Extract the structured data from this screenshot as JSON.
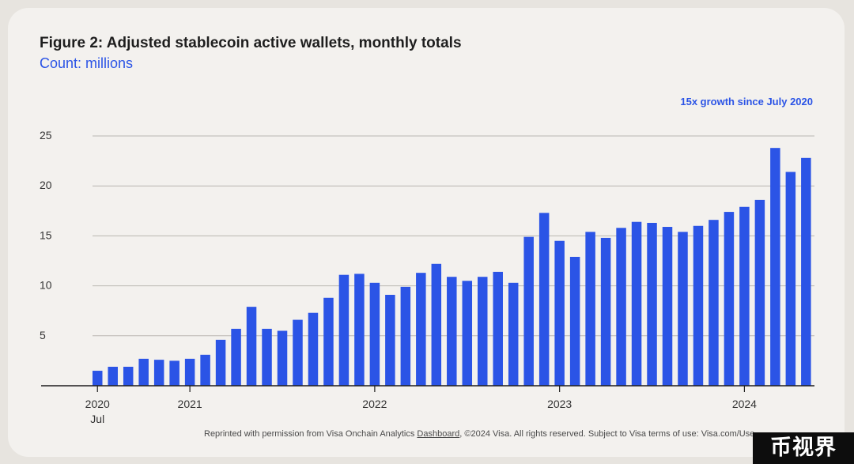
{
  "header": {
    "title": "Figure 2: Adjusted stablecoin active wallets, monthly totals",
    "subtitle": "Count: millions",
    "annotation": "15x growth since July 2020"
  },
  "footer": {
    "credit_prefix": "Reprinted with permission from Visa Onchain Analytics ",
    "credit_link": "Dashboard",
    "credit_suffix": ", ©2024 Visa.  All rights reserved. Subject to Visa terms of use: Visa.com/Use"
  },
  "watermark": {
    "text": "币视界"
  },
  "colors": {
    "bar": "#2b54e6",
    "grid": "#b9b6b1",
    "axis": "#1e1e1e",
    "text": "#333333"
  },
  "chart_data": {
    "type": "bar",
    "title": "Figure 2: Adjusted stablecoin active wallets, monthly totals",
    "subtitle": "Count: millions",
    "xlabel": "",
    "ylabel": "",
    "ylim": [
      0,
      25
    ],
    "yticks": [
      5,
      10,
      15,
      20,
      25
    ],
    "grid": true,
    "categories": [
      "2020-07",
      "2020-08",
      "2020-09",
      "2020-10",
      "2020-11",
      "2020-12",
      "2021-01",
      "2021-02",
      "2021-03",
      "2021-04",
      "2021-05",
      "2021-06",
      "2021-07",
      "2021-08",
      "2021-09",
      "2021-10",
      "2021-11",
      "2021-12",
      "2022-01",
      "2022-02",
      "2022-03",
      "2022-04",
      "2022-05",
      "2022-06",
      "2022-07",
      "2022-08",
      "2022-09",
      "2022-10",
      "2022-11",
      "2022-12",
      "2023-01",
      "2023-02",
      "2023-03",
      "2023-04",
      "2023-05",
      "2023-06",
      "2023-07",
      "2023-08",
      "2023-09",
      "2023-10",
      "2023-11",
      "2023-12",
      "2024-01",
      "2024-02",
      "2024-03",
      "2024-04",
      "2024-05"
    ],
    "values": [
      1.5,
      1.9,
      1.9,
      2.7,
      2.6,
      2.5,
      2.7,
      3.1,
      4.6,
      5.7,
      7.9,
      5.7,
      5.5,
      6.6,
      7.3,
      8.8,
      11.1,
      11.2,
      10.3,
      9.1,
      9.9,
      11.3,
      12.2,
      10.9,
      10.5,
      10.9,
      11.4,
      10.3,
      14.9,
      17.3,
      14.5,
      12.9,
      15.4,
      14.8,
      15.8,
      16.4,
      16.3,
      15.9,
      15.4,
      16.0,
      16.6,
      17.4,
      17.9,
      18.6,
      23.8,
      21.4,
      22.8
    ],
    "x_tick_labels": [
      {
        "index": 0,
        "label": "2020",
        "sublabel": "Jul"
      },
      {
        "index": 6,
        "label": "2021",
        "sublabel": ""
      },
      {
        "index": 18,
        "label": "2022",
        "sublabel": ""
      },
      {
        "index": 30,
        "label": "2023",
        "sublabel": ""
      },
      {
        "index": 42,
        "label": "2024",
        "sublabel": ""
      }
    ],
    "annotation": "15x growth since July 2020"
  }
}
